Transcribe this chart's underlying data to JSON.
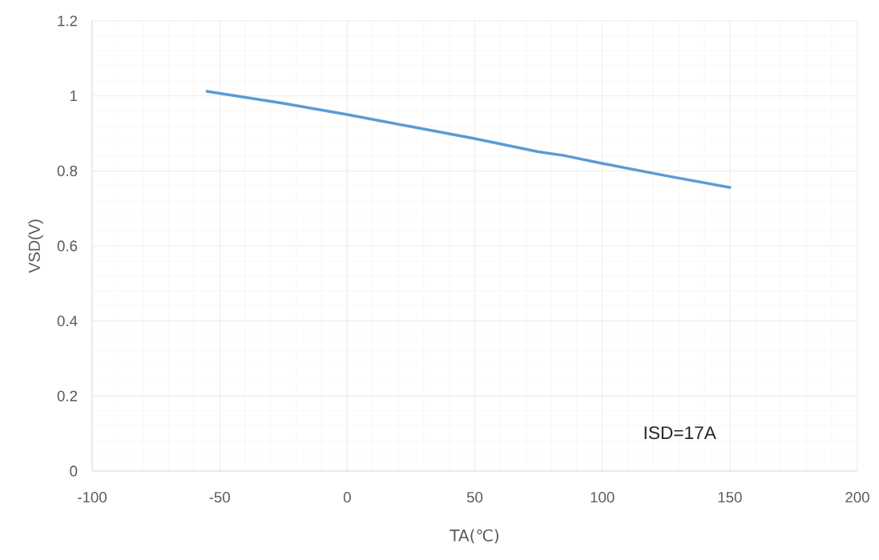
{
  "chart_data": {
    "type": "line",
    "xlabel": "TA(℃)",
    "ylabel": "VSD(V)",
    "x": [
      -55,
      -25,
      0,
      25,
      50,
      75,
      85,
      100,
      125,
      150
    ],
    "series": [
      {
        "color": "#5b9bd5",
        "values": [
          1.012,
          0.98,
          0.95,
          0.918,
          0.886,
          0.851,
          0.841,
          0.82,
          0.787,
          0.756
        ]
      }
    ],
    "xlim": [
      -100,
      200
    ],
    "xticks": [
      -100,
      -50,
      0,
      50,
      100,
      150,
      200
    ],
    "ylim": [
      0,
      1.2
    ],
    "yticks": [
      0,
      0.2,
      0.4,
      0.6,
      0.8,
      1,
      1.2
    ],
    "grid": true,
    "marker": "none",
    "line_style": "solid",
    "annotations": [
      "ISD=17A"
    ]
  }
}
